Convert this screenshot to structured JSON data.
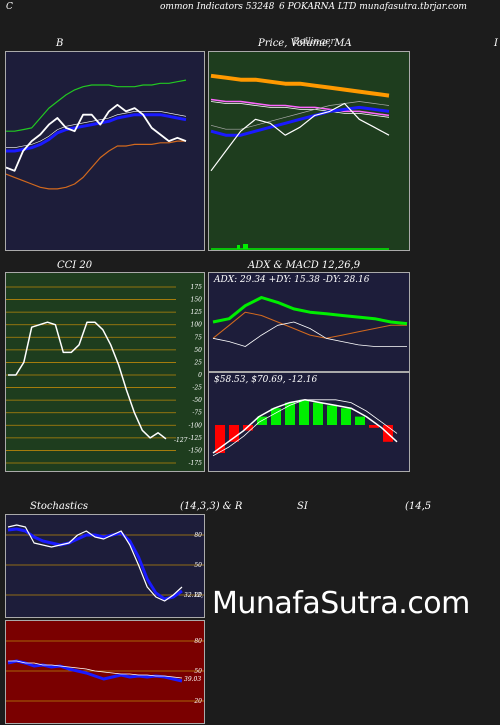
{
  "header": {
    "left_letter": "C",
    "title_left": "ommon  Indicators 53248",
    "title_right": "6  POKARNA LTD munafasutra.tbrjar.com"
  },
  "titles": {
    "bollinger": "B",
    "price_ma": "Price, Volume, MA",
    "price_ma_overlay": "Bollinger",
    "right_edge": "I",
    "cci": "CCI 20",
    "adx_macd": "ADX  & MACD 12,26,9",
    "adx_values": "ADX: 29.34   +DY: 15.38  -DY: 28.16",
    "macd_values": "$58.53,  $70.69,  -12.16",
    "stochastics": "Stochastics",
    "stoch_params": "(14,3,3) & R",
    "rsi": "SI",
    "rsi_params": "(14,5"
  },
  "watermark": "MunafaSutra.com",
  "colors": {
    "bollinger_bg": "#1d1d3a",
    "price_bg": "#1e3d1e",
    "cci_bg": "#1e3d1e",
    "adx_bg": "#1d1d3a",
    "stoch_bg": "#1d1d3a",
    "rsi_bg": "#7a0000",
    "grid_line": "#b8860b",
    "blue": "#1a1aff",
    "green": "#22c822",
    "orange": "#d2691e",
    "bright_green": "#00ee00",
    "red": "#ff0000"
  },
  "chart_data": [
    {
      "type": "line",
      "name": "bollinger-bands",
      "series": [
        {
          "values": [
            72,
            72,
            73,
            74,
            80,
            86,
            90,
            94,
            97,
            99,
            100,
            100,
            100,
            99,
            99,
            99,
            100,
            100,
            101,
            101,
            102,
            103
          ]
        },
        {
          "values": [
            60,
            60,
            61,
            62,
            64,
            67,
            71,
            73,
            74,
            75,
            76,
            77,
            78,
            80,
            81,
            82,
            82,
            82,
            82,
            81,
            80,
            79
          ]
        },
        {
          "values": [
            46,
            44,
            42,
            40,
            38,
            37,
            37,
            38,
            40,
            44,
            50,
            56,
            60,
            63,
            63,
            64,
            64,
            64,
            65,
            65,
            66,
            66
          ]
        },
        {
          "values": [
            50,
            48,
            60,
            66,
            70,
            76,
            80,
            74,
            72,
            82,
            82,
            76,
            84,
            88,
            84,
            86,
            82,
            74,
            70,
            66,
            68,
            66
          ]
        }
      ]
    },
    {
      "type": "line",
      "name": "price-ma",
      "series": [
        {
          "values": [
            88,
            87,
            86,
            86,
            85,
            84,
            84,
            83,
            82,
            81,
            80,
            79,
            78
          ]
        },
        {
          "values": [
            76,
            75,
            75,
            74,
            73,
            73,
            72,
            72,
            71,
            70,
            70,
            69,
            68
          ]
        },
        {
          "values": [
            60,
            58,
            58,
            60,
            62,
            64,
            66,
            68,
            70,
            71,
            72,
            71,
            70
          ]
        },
        {
          "values": [
            40,
            50,
            60,
            66,
            64,
            58,
            62,
            68,
            70,
            74,
            66,
            62,
            58
          ]
        }
      ]
    },
    {
      "type": "line",
      "name": "cci-20",
      "yticks": [
        175,
        150,
        125,
        100,
        75,
        50,
        25,
        0,
        -25,
        -50,
        -75,
        -100,
        -125,
        -150,
        -175
      ],
      "ylim": [
        -175,
        175
      ],
      "last_label": "-127",
      "values": [
        0,
        0,
        25,
        95,
        100,
        105,
        100,
        45,
        45,
        60,
        105,
        105,
        90,
        60,
        20,
        -30,
        -75,
        -110,
        -125,
        -115,
        -127
      ]
    },
    {
      "type": "line",
      "name": "adx",
      "series": [
        {
          "values": [
            30,
            32,
            40,
            45,
            42,
            38,
            36,
            35,
            34,
            33,
            32,
            30,
            29
          ]
        },
        {
          "values": [
            20,
            18,
            15,
            22,
            28,
            30,
            26,
            20,
            18,
            16,
            15,
            15,
            15
          ]
        },
        {
          "values": [
            20,
            28,
            36,
            34,
            30,
            26,
            22,
            20,
            22,
            24,
            26,
            28,
            28
          ]
        }
      ]
    },
    {
      "type": "bar",
      "name": "macd",
      "series": [
        {
          "values": [
            -20,
            -12,
            -4,
            6,
            12,
            16,
            18,
            16,
            14,
            12,
            6,
            -2,
            -12
          ]
        },
        {
          "values": [
            -22,
            -16,
            -8,
            2,
            8,
            14,
            18,
            18,
            18,
            16,
            10,
            2,
            -6
          ]
        }
      ]
    },
    {
      "type": "line",
      "name": "stochastics",
      "yticks": [
        80,
        50,
        20
      ],
      "ylim": [
        0,
        100
      ],
      "last_label": "32.12, 21.05",
      "series": [
        {
          "values": [
            88,
            90,
            88,
            72,
            70,
            68,
            70,
            72,
            80,
            84,
            78,
            76,
            80,
            84,
            70,
            50,
            28,
            18,
            14,
            20,
            28
          ]
        },
        {
          "values": [
            85,
            86,
            84,
            78,
            74,
            72,
            70,
            72,
            76,
            80,
            80,
            78,
            80,
            82,
            74,
            58,
            36,
            22,
            16,
            18,
            24
          ]
        }
      ]
    },
    {
      "type": "line",
      "name": "rsi",
      "yticks": [
        80,
        50,
        20
      ],
      "ylim": [
        0,
        100
      ],
      "last_label": "39.03",
      "series": [
        {
          "values": [
            58,
            60,
            58,
            55,
            56,
            54,
            55,
            52,
            50,
            48,
            45,
            42,
            44,
            46,
            44,
            45,
            44,
            45,
            44,
            42,
            40
          ]
        },
        {
          "values": [
            60,
            60,
            58,
            58,
            56,
            56,
            55,
            54,
            53,
            52,
            50,
            49,
            48,
            47,
            47,
            46,
            46,
            45,
            45,
            44,
            43
          ]
        }
      ]
    }
  ]
}
